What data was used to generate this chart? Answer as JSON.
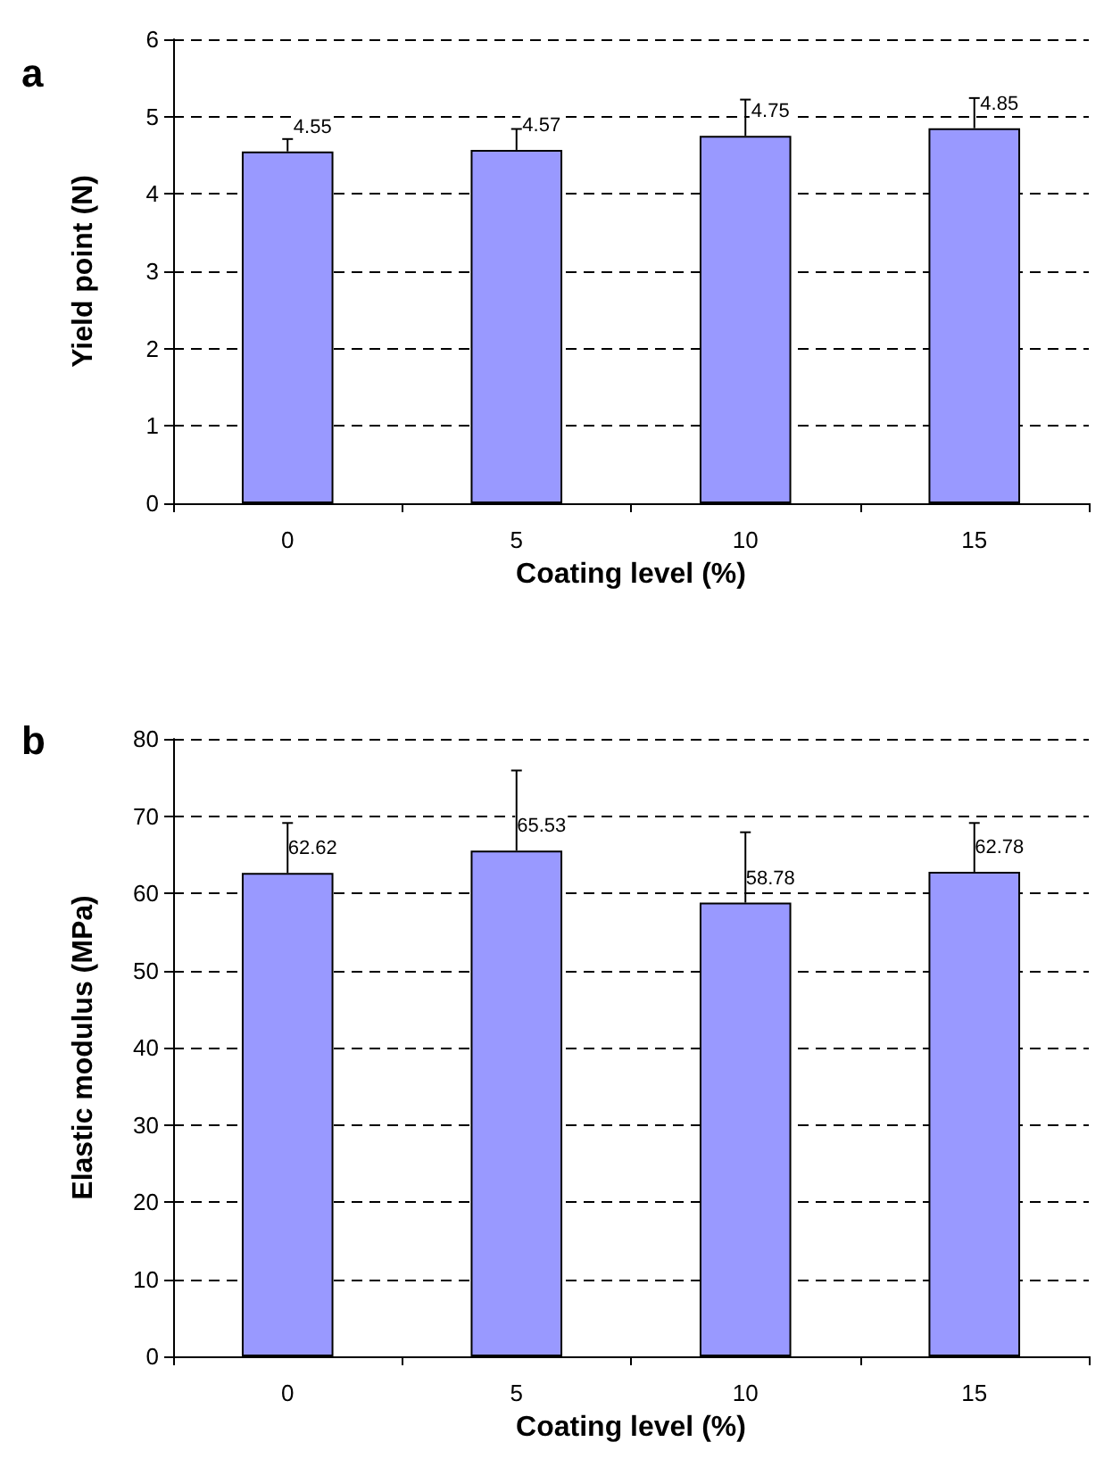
{
  "chart_data": [
    {
      "type": "bar",
      "annotations": [
        "a"
      ],
      "xlabel": "Coating level (%)",
      "ylabel": "Yield point (N)",
      "categories": [
        "0",
        "5",
        "10",
        "15"
      ],
      "values": [
        4.55,
        4.57,
        4.75,
        4.85
      ],
      "color": "#9999ff",
      "errors": [
        [
          4.55,
          4.71
        ],
        [
          4.57,
          4.84
        ],
        [
          4.75,
          5.22
        ],
        [
          4.85,
          5.24
        ]
      ],
      "ylim": [
        0,
        6
      ],
      "yticks": [
        0,
        1,
        2,
        3,
        4,
        5,
        6
      ],
      "grid": "y",
      "data_labels": true
    },
    {
      "type": "bar",
      "annotations": [
        "b"
      ],
      "xlabel": "Coating level (%)",
      "ylabel": "Elastic modulus (MPa)",
      "categories": [
        "0",
        "5",
        "10",
        "15"
      ],
      "values": [
        62.62,
        65.53,
        58.78,
        62.78
      ],
      "color": "#9999ff",
      "errors": [
        [
          62.62,
          69.1
        ],
        [
          65.53,
          75.9
        ],
        [
          58.78,
          67.9
        ],
        [
          62.78,
          69.1
        ]
      ],
      "ylim": [
        0,
        80
      ],
      "yticks": [
        0,
        10,
        20,
        30,
        40,
        50,
        60,
        70,
        80
      ],
      "grid": "y",
      "data_labels": true
    }
  ]
}
